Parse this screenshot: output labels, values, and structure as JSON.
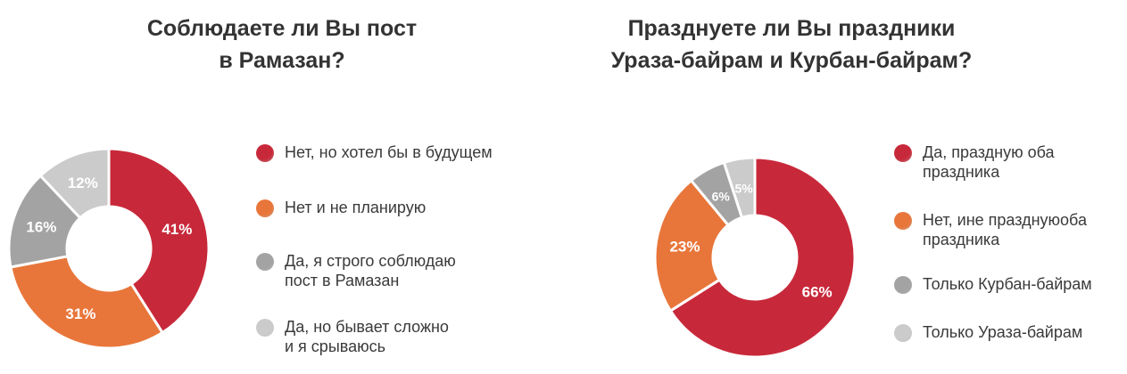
{
  "chart_data": [
    {
      "type": "donut",
      "title": [
        "Соблюдаете ли Вы пост",
        "в Рамазан?"
      ],
      "categories": [
        [
          "Нет, но хотел бы в будущем"
        ],
        [
          "Нет и не планирую"
        ],
        [
          "Да, я строго соблюдаю",
          "пост в Рамазан"
        ],
        [
          "Да, но бывает сложно",
          "и я срываюсь"
        ]
      ],
      "values": [
        41,
        31,
        16,
        12
      ],
      "labels": [
        "41%",
        "31%",
        "16%",
        "12%"
      ],
      "colors": [
        "#c8293a",
        "#e8763a",
        "#a3a3a3",
        "#cbcbcb"
      ],
      "legend_position": "right"
    },
    {
      "type": "donut",
      "title": [
        "Празднуете ли Вы праздники",
        "Ураза-байрам и Курбан-байрам?"
      ],
      "categories": [
        [
          "Да, праздную оба",
          "праздника"
        ],
        [
          "Нет, ине празднуюоба",
          "праздника"
        ],
        [
          "Только Курбан-байрам"
        ],
        [
          "Только Ураза-байрам"
        ]
      ],
      "values": [
        66,
        23,
        6,
        5
      ],
      "labels": [
        "66%",
        "23%",
        "6%",
        "5%"
      ],
      "colors": [
        "#c8293a",
        "#e8763a",
        "#a3a3a3",
        "#cbcbcb"
      ],
      "legend_position": "right"
    }
  ]
}
